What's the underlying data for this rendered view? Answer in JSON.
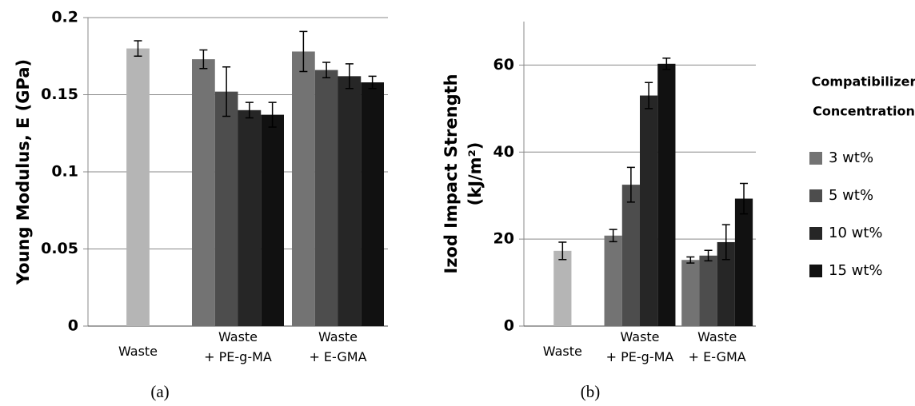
{
  "chart_data": [
    {
      "type": "bar",
      "caption": "(a)",
      "ylabel": [
        "Young Modulus, E (GPa)"
      ],
      "categories": [
        [
          "Waste"
        ],
        [
          "Waste",
          "+ PE-g-MA"
        ],
        [
          "Waste",
          "+ E-GMA"
        ]
      ],
      "ylim": [
        0,
        0.2
      ],
      "yticks": [
        0,
        0.05,
        0.1,
        0.15,
        0.2
      ],
      "grid": true,
      "series": [
        {
          "color": "#b5b5b5",
          "values": [
            0.18,
            null,
            null
          ],
          "errors": [
            0.005,
            null,
            null
          ]
        },
        {
          "name": "3 wt%",
          "color": "#737373",
          "values": [
            null,
            0.173,
            0.178
          ],
          "errors": [
            null,
            0.006,
            0.013
          ]
        },
        {
          "name": "5 wt%",
          "color": "#4d4d4d",
          "values": [
            null,
            0.152,
            0.166
          ],
          "errors": [
            null,
            0.016,
            0.005
          ]
        },
        {
          "name": "10 wt%",
          "color": "#262626",
          "values": [
            null,
            0.14,
            0.162
          ],
          "errors": [
            null,
            0.005,
            0.008
          ]
        },
        {
          "name": "15 wt%",
          "color": "#111111",
          "values": [
            null,
            0.137,
            0.158
          ],
          "errors": [
            null,
            0.008,
            0.004
          ]
        }
      ]
    },
    {
      "type": "bar",
      "caption": "(b)",
      "ylabel": [
        "Izod Impact Strength",
        "(kJ/m²)"
      ],
      "categories": [
        [
          "Waste"
        ],
        [
          "Waste",
          "+ PE-g-MA"
        ],
        [
          "Waste",
          "+ E-GMA"
        ]
      ],
      "ylim": [
        0,
        70
      ],
      "yticks": [
        0,
        20,
        40,
        60
      ],
      "grid": true,
      "legend_title": [
        "Compatibilizer",
        "Concentration"
      ],
      "legend": "right",
      "series": [
        {
          "color": "#b5b5b5",
          "values": [
            17.3,
            null,
            null
          ],
          "errors": [
            2,
            null,
            null
          ]
        },
        {
          "name": "3 wt%",
          "color": "#737373",
          "values": [
            null,
            20.8,
            15.2
          ],
          "errors": [
            null,
            1.4,
            0.7
          ]
        },
        {
          "name": "5 wt%",
          "color": "#4d4d4d",
          "values": [
            null,
            32.5,
            16.2
          ],
          "errors": [
            null,
            4,
            1.2
          ]
        },
        {
          "name": "10 wt%",
          "color": "#262626",
          "values": [
            null,
            53,
            19.3
          ],
          "errors": [
            null,
            3,
            4
          ]
        },
        {
          "name": "15 wt%",
          "color": "#111111",
          "values": [
            null,
            60.3,
            29.3
          ],
          "errors": [
            null,
            1.3,
            3.5
          ]
        }
      ]
    }
  ]
}
